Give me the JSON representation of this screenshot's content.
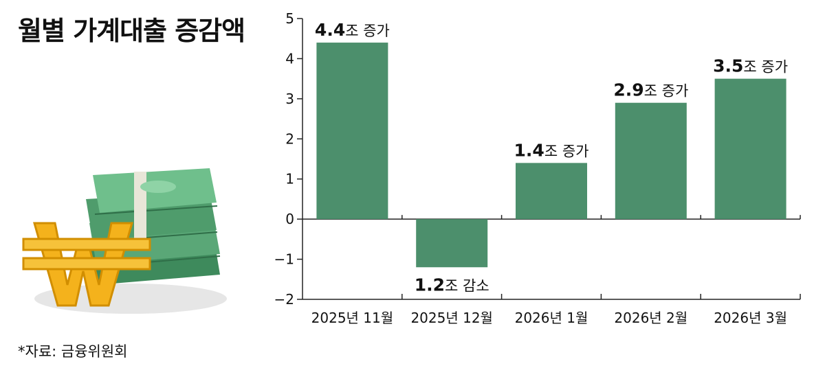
{
  "title": "월별 가계대출 증감액",
  "source": "*자료: 금융위원회",
  "colors": {
    "bar": "#4c8f6c",
    "money_green": "#5aa777",
    "won_gold": "#f4b21c"
  },
  "illustration": {
    "icons": [
      "money-stack-icon",
      "won-sign-icon"
    ]
  },
  "chart_data": {
    "type": "bar",
    "categories": [
      "2025년 11월",
      "2025년 12월",
      "2026년 1월",
      "2026년 2월",
      "2026년 3월"
    ],
    "values": [
      4.4,
      -1.2,
      1.4,
      2.9,
      3.5
    ],
    "ylim": [
      -2,
      5
    ],
    "yticks": [
      "−2",
      "−1",
      "0",
      "1",
      "2",
      "3",
      "4",
      "5"
    ],
    "grid": false,
    "legend": "none",
    "data_labels": [
      {
        "value": "4.4",
        "text": "조 증가"
      },
      {
        "value": "1.2",
        "text": "조 감소"
      },
      {
        "value": "1.4",
        "text": "조 증가"
      },
      {
        "value": "2.9",
        "text": "조 증가"
      },
      {
        "value": "3.5",
        "text": "조 증가"
      }
    ]
  }
}
